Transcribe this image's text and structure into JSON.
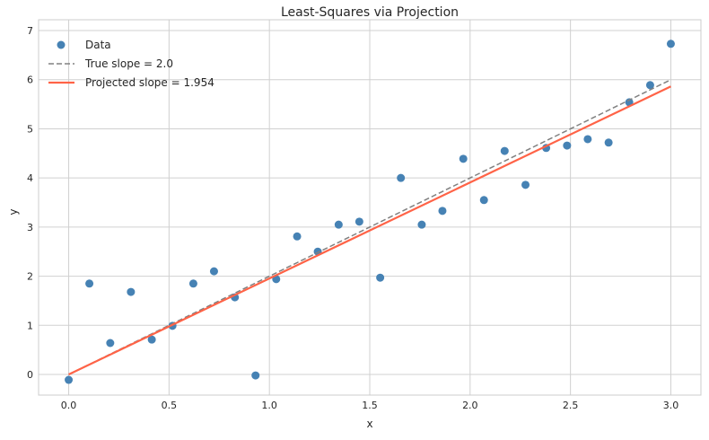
{
  "chart_data": {
    "type": "scatter",
    "title": "Least-Squares via Projection",
    "xlabel": "x",
    "ylabel": "y",
    "xlim": [
      -0.15,
      3.15
    ],
    "ylim": [
      -0.42,
      7.22
    ],
    "xticks": [
      "0.0",
      "0.5",
      "1.0",
      "1.5",
      "2.0",
      "2.5",
      "3.0"
    ],
    "yticks": [
      "0",
      "1",
      "2",
      "3",
      "4",
      "5",
      "6",
      "7"
    ],
    "grid": true,
    "legend_position": "top-left",
    "series": [
      {
        "name": "Data",
        "kind": "scatter",
        "color": "#4682b4",
        "x": [
          0,
          0.103,
          0.207,
          0.31,
          0.414,
          0.517,
          0.621,
          0.724,
          0.828,
          0.931,
          1.034,
          1.138,
          1.241,
          1.345,
          1.448,
          1.552,
          1.655,
          1.759,
          1.862,
          1.966,
          2.069,
          2.172,
          2.276,
          2.379,
          2.483,
          2.586,
          2.69,
          2.793,
          2.897,
          3.0
        ],
        "y": [
          -0.11,
          1.85,
          0.64,
          1.68,
          0.71,
          0.99,
          1.85,
          2.1,
          1.57,
          -0.02,
          1.94,
          2.81,
          2.5,
          3.05,
          3.11,
          1.97,
          4.0,
          3.05,
          3.33,
          4.39,
          3.55,
          4.55,
          3.86,
          4.61,
          4.66,
          4.79,
          4.72,
          5.54,
          5.89,
          6.73
        ]
      },
      {
        "name": "True slope = 2.0",
        "kind": "line",
        "style": "dashed",
        "color": "#808080",
        "x": [
          0,
          3
        ],
        "y": [
          0,
          6
        ]
      },
      {
        "name": "Projected slope = 1.954",
        "kind": "line",
        "style": "solid",
        "color": "#ff6347",
        "x": [
          0,
          3
        ],
        "y": [
          0,
          5.862
        ]
      }
    ]
  }
}
